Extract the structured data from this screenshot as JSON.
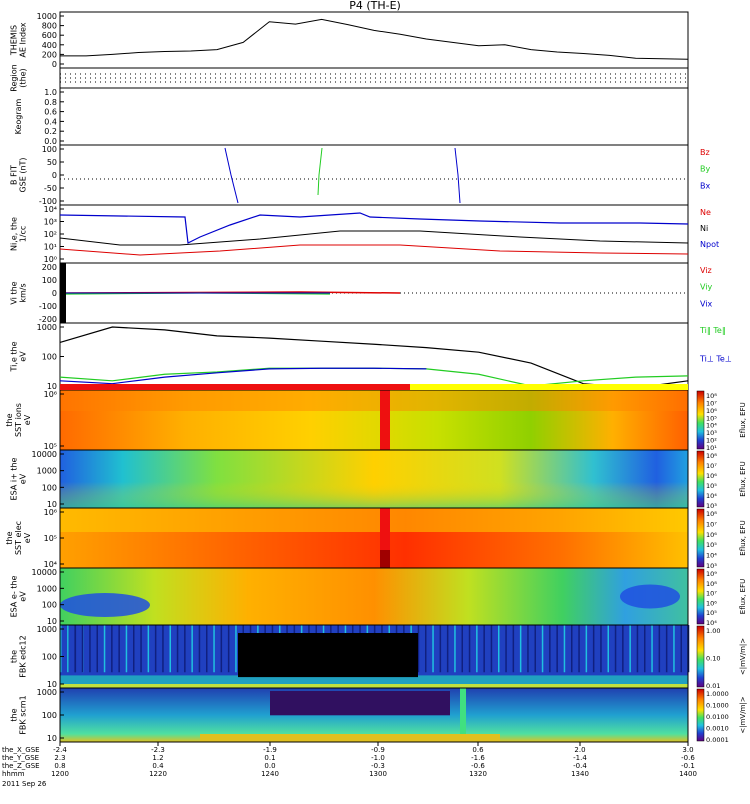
{
  "title": "P4 (TH-E)",
  "footer": {
    "rows": [
      {
        "label": "the_X_GSE",
        "values": [
          "-2.4",
          "-2.3",
          "-1.9",
          "-0.9",
          "0.6",
          "2.0",
          "3.0"
        ]
      },
      {
        "label": "the_Y_GSE",
        "values": [
          "2.3",
          "1.2",
          "0.1",
          "-1.0",
          "-1.6",
          "-1.4",
          "-0.6"
        ]
      },
      {
        "label": "the_Z_GSE",
        "values": [
          "0.8",
          "0.4",
          "0.0",
          "-0.3",
          "-0.6",
          "-0.4",
          "-0.1"
        ]
      },
      {
        "label": "hhmm",
        "values": [
          "1200",
          "1220",
          "1240",
          "1300",
          "1320",
          "1340",
          "1400"
        ]
      }
    ],
    "date": "2011 Sep 26"
  },
  "panels": [
    {
      "id": "ae",
      "ylabel": [
        "THEMIS",
        "AE Index"
      ],
      "ticks": [
        "1000",
        "800",
        "600",
        "400",
        "200",
        "0"
      ]
    },
    {
      "id": "region",
      "ylabel": [
        "Region",
        "(the)"
      ],
      "ticks": []
    },
    {
      "id": "keogram",
      "ylabel": [
        "Keogram"
      ],
      "ticks": [
        "1.0",
        "0.8",
        "0.6",
        "0.4",
        "0.2",
        "0.0"
      ]
    },
    {
      "id": "bfield",
      "ylabel": [
        "B FIT",
        "GSE (nT)"
      ],
      "ticks": [
        "100",
        "50",
        "0",
        "-50",
        "-100"
      ],
      "legend": [
        {
          "text": "Bz",
          "color": "#dd0000"
        },
        {
          "text": "By",
          "color": "#22cc22"
        },
        {
          "text": "Bx",
          "color": "#0000cc"
        }
      ]
    },
    {
      "id": "density",
      "ylabel": [
        "Ni,e, the",
        "1/cc"
      ],
      "ticks": [
        "10⁴",
        "10³",
        "10²",
        "10¹",
        "10⁰"
      ],
      "legend": [
        {
          "text": "Ne",
          "color": "#dd0000"
        },
        {
          "text": "Ni",
          "color": "#000000"
        },
        {
          "text": "Npot",
          "color": "#0000cc"
        }
      ]
    },
    {
      "id": "velocity",
      "ylabel": [
        "Vi the",
        "km/s"
      ],
      "ticks": [
        "200",
        "100",
        "0",
        "-100",
        "-200"
      ],
      "legend": [
        {
          "text": "Viz",
          "color": "#dd0000"
        },
        {
          "text": "Viy",
          "color": "#22cc22"
        },
        {
          "text": "Vix",
          "color": "#0000cc"
        }
      ]
    },
    {
      "id": "temp",
      "ylabel": [
        "Ti,e the",
        "eV"
      ],
      "ticks": [
        "1000",
        "100",
        "10"
      ],
      "legend": [
        {
          "text": "Ti‖ Te‖",
          "color": "#22cc22"
        },
        {
          "text": "Ti⊥ Te⊥",
          "color": "#0000cc"
        }
      ]
    },
    {
      "id": "sst_ion",
      "ylabel": [
        "the",
        "SST ions",
        "eV"
      ],
      "ticks": [
        "10⁶",
        "10⁵"
      ],
      "cbar": [
        "10⁸",
        "10⁷",
        "10⁶",
        "10⁵",
        "10⁴",
        "10³",
        "10²",
        "10¹"
      ],
      "cbar_label": "Eflux, EFU"
    },
    {
      "id": "esa_ion",
      "ylabel": [
        "ESA i+ the",
        "eV"
      ],
      "ticks": [
        "10000",
        "1000",
        "100",
        "10"
      ],
      "cbar": [
        "10⁸",
        "10⁷",
        "10⁶",
        "10⁵",
        "10⁴",
        "10³"
      ],
      "cbar_label": "Eflux, EFU"
    },
    {
      "id": "sst_elec",
      "ylabel": [
        "the",
        "SST elec",
        "eV"
      ],
      "ticks": [
        "10⁶",
        "10⁵",
        "10⁴"
      ],
      "cbar": [
        "10⁸",
        "10⁷",
        "10⁶",
        "10⁵",
        "10⁴",
        "10³"
      ],
      "cbar_label": "Eflux, EFU"
    },
    {
      "id": "esa_elec",
      "ylabel": [
        "ESA e- the",
        "eV"
      ],
      "ticks": [
        "10000",
        "1000",
        "100",
        "10"
      ],
      "cbar": [
        "10⁹",
        "10⁸",
        "10⁷",
        "10⁶",
        "10⁵",
        "10⁴"
      ],
      "cbar_label": "Eflux, EFU"
    },
    {
      "id": "fbk_e12",
      "ylabel": [
        "the",
        "FBK edc12"
      ],
      "ticks": [
        "1000",
        "100",
        "10"
      ],
      "cbar": [
        "1.00",
        "0.10",
        "0.01"
      ],
      "cbar_label": "<|mV/m|>"
    },
    {
      "id": "fbk_scm",
      "ylabel": [
        "the",
        "FBK scm1"
      ],
      "ticks": [
        "1000",
        "100",
        "10"
      ],
      "cbar": [
        "1.0000",
        "0.1000",
        "0.0100",
        "0.0010",
        "0.0001"
      ],
      "cbar_label": "<|mV/m|>"
    }
  ],
  "chart_data": [
    {
      "type": "line",
      "title": "THEMIS AE Index",
      "x_unit": "hhmm",
      "x": [
        "1200",
        "1205",
        "1210",
        "1215",
        "1220",
        "1225",
        "1230",
        "1235",
        "1240",
        "1245",
        "1250",
        "1255",
        "1300",
        "1305",
        "1310",
        "1315",
        "1320",
        "1325",
        "1330",
        "1335",
        "1340",
        "1345",
        "1350",
        "1355",
        "1400"
      ],
      "values": [
        170,
        170,
        200,
        240,
        260,
        270,
        300,
        450,
        880,
        830,
        930,
        820,
        700,
        620,
        520,
        450,
        380,
        400,
        300,
        250,
        220,
        180,
        120,
        110,
        100
      ],
      "ylim": [
        0,
        1000
      ]
    },
    {
      "type": "line",
      "title": "Ti,e the (eV)",
      "series": [
        {
          "name": "Te‖",
          "color": "#000000",
          "values": [
            300,
            1000,
            800,
            500,
            420,
            330,
            260,
            200,
            140,
            60,
            12,
            6,
            15
          ]
        },
        {
          "name": "Ti‖",
          "color": "#22cc22",
          "values": [
            20,
            15,
            25,
            30,
            40,
            40,
            40,
            38,
            25,
            10,
            15,
            20,
            22
          ]
        },
        {
          "name": "Ti⊥",
          "color": "#0000cc",
          "values": [
            15,
            12,
            20,
            28,
            38,
            40,
            40,
            38,
            0,
            0,
            0,
            0,
            0
          ]
        }
      ],
      "x": [
        "1200",
        "1210",
        "1220",
        "1230",
        "1240",
        "1250",
        "1300",
        "1310",
        "1320",
        "1330",
        "1340",
        "1350",
        "1400"
      ],
      "ylim": [
        10,
        1000
      ]
    }
  ]
}
